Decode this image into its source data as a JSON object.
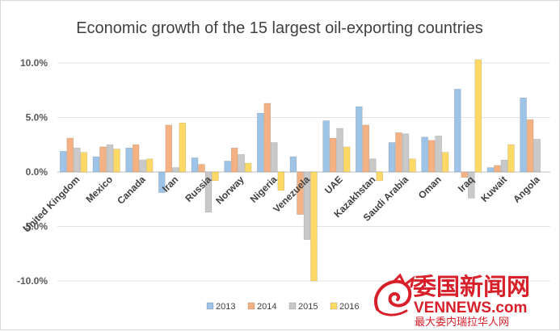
{
  "chart_data": {
    "type": "bar",
    "title": "Economic growth of the 15 largest oil-exporting countries",
    "categories": [
      "United Kingdom",
      "Mexico",
      "Canada",
      "Iran",
      "Russia",
      "Norway",
      "Nigeria",
      "Venezuela",
      "UAE",
      "Kazakhstan",
      "Saudi Arabia",
      "Oman",
      "Iraq",
      "Kuwait",
      "Angola"
    ],
    "series": [
      {
        "name": "2013",
        "color": "#9dc3e6",
        "values": [
          1.9,
          1.4,
          2.2,
          -1.9,
          1.3,
          1.0,
          5.4,
          1.4,
          4.7,
          6.0,
          2.7,
          3.2,
          7.6,
          0.4,
          6.8
        ]
      },
      {
        "name": "2014",
        "color": "#f4b183",
        "values": [
          3.1,
          2.3,
          2.5,
          4.3,
          0.7,
          2.2,
          6.3,
          -3.9,
          3.1,
          4.3,
          3.6,
          2.9,
          -0.5,
          0.6,
          4.8
        ]
      },
      {
        "name": "2015",
        "color": "#c9c9c9",
        "values": [
          2.2,
          2.5,
          1.1,
          0.4,
          -3.7,
          1.6,
          2.7,
          -6.2,
          4.0,
          1.2,
          3.5,
          3.3,
          -2.4,
          1.1,
          3.0
        ]
      },
      {
        "name": "2016",
        "color": "#ffd966",
        "values": [
          1.8,
          2.1,
          1.2,
          4.5,
          -0.8,
          0.8,
          -1.7,
          -10.0,
          2.3,
          -0.8,
          1.2,
          1.8,
          10.3,
          2.5,
          0.0
        ]
      }
    ],
    "y_ticks": [
      "10.0%",
      "5.0%",
      "0.0%",
      "-5.0%",
      "-10.0%"
    ],
    "ylim": [
      -10,
      10
    ],
    "grid": true,
    "legend_position": "bottom"
  },
  "watermark": {
    "line1": "委国新闻网",
    "line2": "VENNEWS.com",
    "line3": "最大委内瑞拉华人网"
  }
}
